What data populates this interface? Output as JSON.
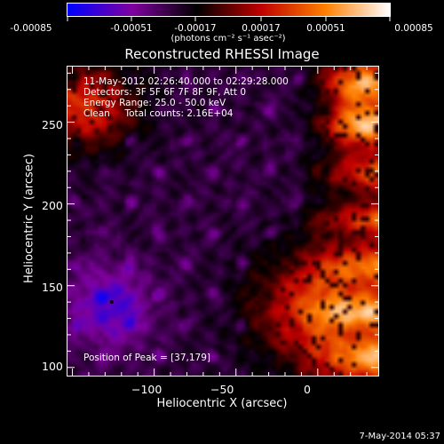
{
  "colorbar": {
    "tick_labels": [
      "-0.00085",
      "-0.00051",
      "-0.00017",
      "0.00017",
      "0.00051",
      "0.00085"
    ],
    "unit_label": "(photons cm⁻² s⁻¹ asec⁻²)",
    "range": [
      -0.00085,
      0.00085
    ],
    "colors": [
      "#0000ff",
      "#8000a0",
      "#000000",
      "#c00000",
      "#ff8000",
      "#ffffff"
    ]
  },
  "chart_data": {
    "type": "heatmap",
    "title": "Reconstructed RHESSI Image",
    "xlabel": "Heliocentric X (arcsec)",
    "ylabel": "Heliocentric Y (arcsec)",
    "xlim": [
      -153,
      37
    ],
    "ylim": [
      95,
      284
    ],
    "x_ticks": [
      -100,
      -50,
      0
    ],
    "y_ticks": [
      100,
      150,
      200,
      250
    ],
    "x_tick_labels": [
      "−100",
      "−50",
      "0"
    ],
    "y_tick_labels": [
      "100",
      "150",
      "200",
      "250"
    ],
    "annotations": {
      "time_range": "11-May-2012 02:26:40.000 to 02:29:28.000",
      "detectors": "Detectors: 3F 5F 6F 7F 8F 9F, Att 0",
      "energy_range": "Energy Range: 25.0 - 50.0 keV",
      "method_counts": "Clean     Total counts: 2.16E+04",
      "peak_position": "Position of Peak = [37,179]"
    },
    "peak": [
      37,
      179
    ],
    "min_marker": [
      -126,
      140
    ]
  },
  "footer": {
    "date": "7-May-2014 05:37"
  }
}
